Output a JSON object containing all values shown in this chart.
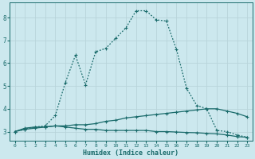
{
  "xlabel": "Humidex (Indice chaleur)",
  "xlim": [
    -0.5,
    23.5
  ],
  "ylim": [
    2.6,
    8.65
  ],
  "yticks": [
    3,
    4,
    5,
    6,
    7,
    8
  ],
  "xticks": [
    0,
    1,
    2,
    3,
    4,
    5,
    6,
    7,
    8,
    9,
    10,
    11,
    12,
    13,
    14,
    15,
    16,
    17,
    18,
    19,
    20,
    21,
    22,
    23
  ],
  "bg_color": "#cce8ee",
  "grid_color": "#b8d4da",
  "line_color": "#1a6b6b",
  "series": [
    {
      "x": [
        0,
        1,
        2,
        3,
        4,
        5,
        6,
        7,
        8,
        9,
        10,
        11,
        12,
        13,
        14,
        15,
        16,
        17,
        18,
        19,
        20,
        21,
        22,
        23
      ],
      "y": [
        3.0,
        3.15,
        3.2,
        3.2,
        3.25,
        3.25,
        3.3,
        3.3,
        3.35,
        3.45,
        3.5,
        3.6,
        3.65,
        3.7,
        3.75,
        3.8,
        3.85,
        3.9,
        3.95,
        4.0,
        4.0,
        3.9,
        3.8,
        3.65
      ],
      "linestyle": "solid",
      "marker": "+"
    },
    {
      "x": [
        0,
        1,
        2,
        3,
        4,
        5,
        6,
        7,
        8,
        9,
        10,
        11,
        12,
        13,
        14,
        15,
        16,
        17,
        18,
        19,
        20,
        21,
        22,
        23
      ],
      "y": [
        3.0,
        3.1,
        3.15,
        3.2,
        3.25,
        3.2,
        3.15,
        3.1,
        3.1,
        3.05,
        3.05,
        3.05,
        3.05,
        3.05,
        3.0,
        3.0,
        2.98,
        2.96,
        2.95,
        2.92,
        2.9,
        2.85,
        2.78,
        2.75
      ],
      "linestyle": "solid",
      "marker": "+"
    },
    {
      "x": [
        0,
        1,
        2,
        3,
        4,
        5,
        6,
        7,
        8,
        9,
        10,
        11,
        12,
        13,
        14,
        15,
        16,
        17,
        18,
        19,
        20,
        21,
        22,
        23
      ],
      "y": [
        3.0,
        3.1,
        3.2,
        3.25,
        3.7,
        5.15,
        6.35,
        5.05,
        6.5,
        6.65,
        7.1,
        7.55,
        8.3,
        8.3,
        7.9,
        7.85,
        6.6,
        4.9,
        4.15,
        4.0,
        3.05,
        3.0,
        2.85,
        2.75
      ],
      "linestyle": "dotted",
      "marker": "+"
    }
  ]
}
